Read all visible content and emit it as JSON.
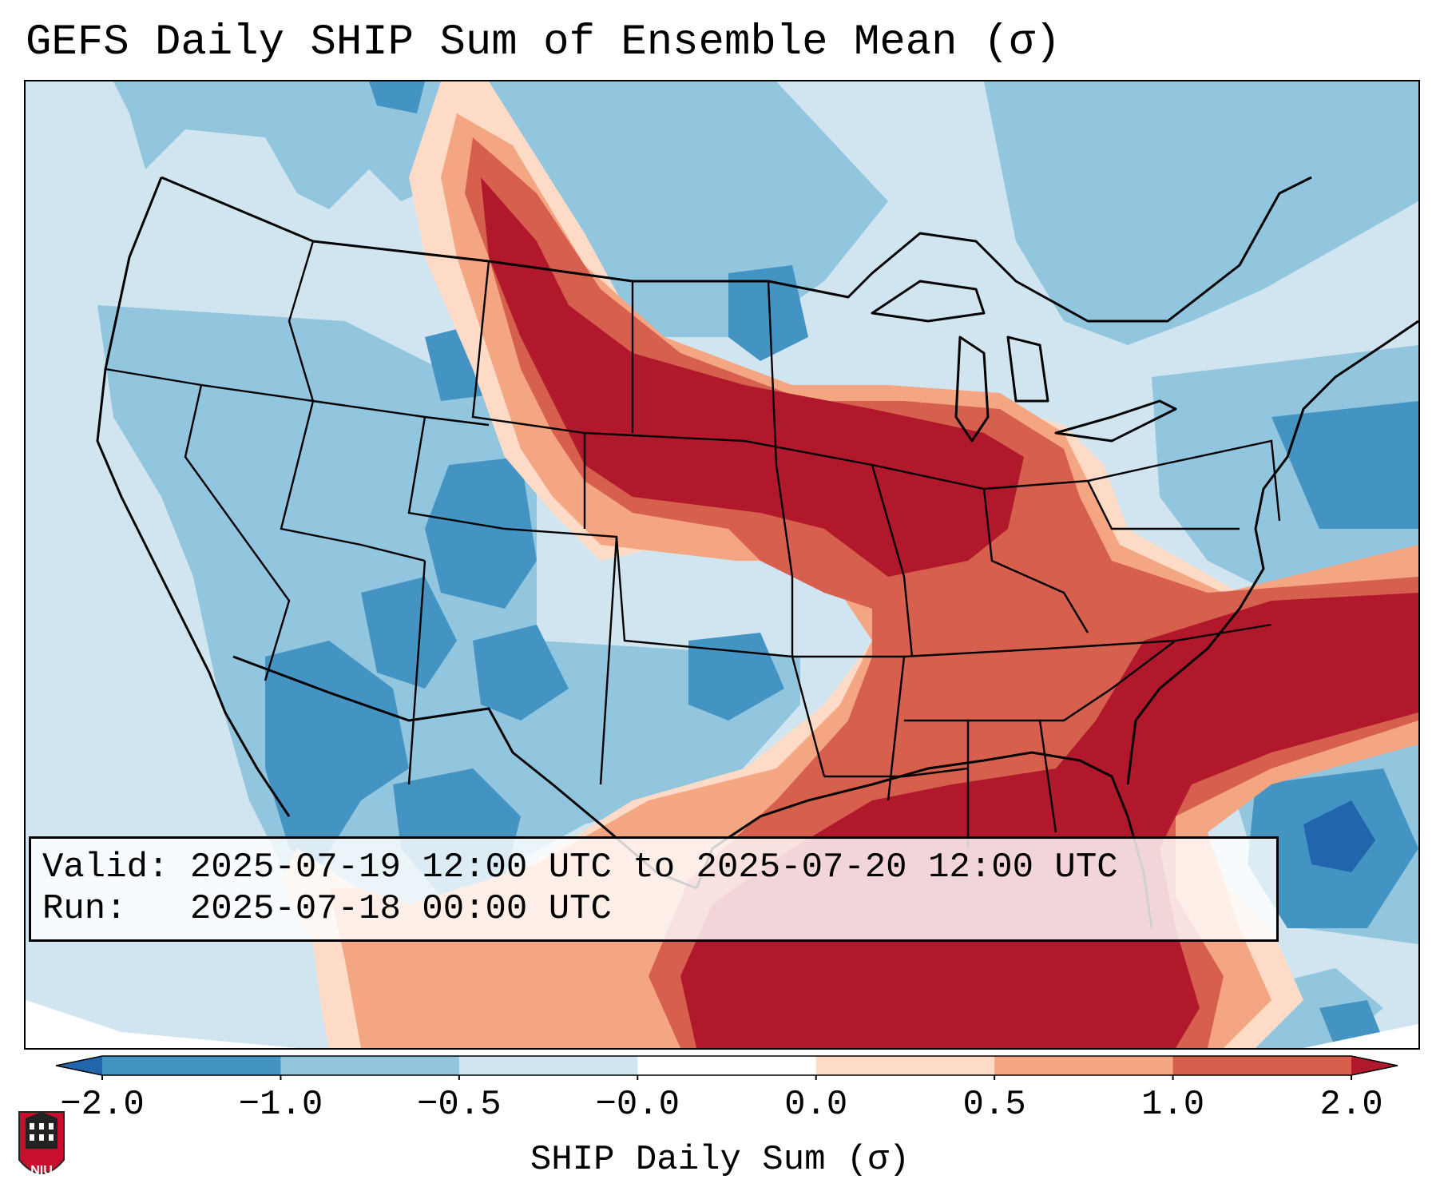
{
  "title": "GEFS Daily SHIP Sum of Ensemble Mean (σ)",
  "info": {
    "valid_label": "Valid:",
    "valid_value": "2025-07-19 12:00 UTC to 2025-07-20 12:00 UTC",
    "run_label": "Run:",
    "run_value": "2025-07-18 00:00 UTC"
  },
  "colorbar": {
    "label": "SHIP Daily Sum (σ)",
    "extend": "both",
    "ticks": [
      "−2.0",
      "−1.0",
      "−0.5",
      "−0.0",
      "0.0",
      "0.5",
      "1.0",
      "2.0"
    ],
    "bins": [
      {
        "range": "< -2.0",
        "color": "#2166ac"
      },
      {
        "range": "-2.0 to -1.0",
        "color": "#4393c3"
      },
      {
        "range": "-1.0 to -0.5",
        "color": "#92c5de"
      },
      {
        "range": "-0.5 to -0.0",
        "color": "#d1e5f0"
      },
      {
        "range": "-0.0 to 0.0",
        "color": "#ffffff"
      },
      {
        "range": "0.0 to 0.5",
        "color": "#fddbc7"
      },
      {
        "range": "0.5 to 1.0",
        "color": "#f4a582"
      },
      {
        "range": "1.0 to 2.0",
        "color": "#d6604d"
      },
      {
        "range": "> 2.0",
        "color": "#b2182b"
      }
    ]
  },
  "logo": {
    "text": "NIU",
    "colors": {
      "shield": "#c8102e",
      "building": "#222222"
    }
  },
  "map": {
    "projection": "Lambert Conformal (CONUS)",
    "region": "Contiguous United States",
    "features": [
      "state-borders",
      "coastlines",
      "country-borders",
      "great-lakes"
    ],
    "colors": {
      "background": "#d1e5f0",
      "border": "#000000"
    }
  }
}
